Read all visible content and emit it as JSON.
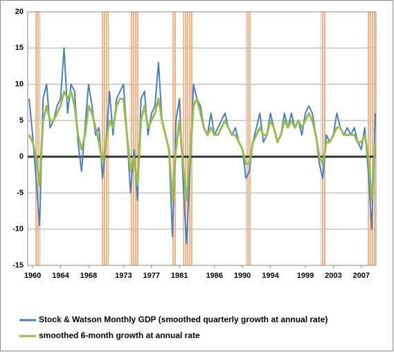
{
  "chart_data": {
    "type": "line",
    "x": [
      1959.5,
      1960,
      1960.5,
      1961,
      1961.5,
      1962,
      1962.5,
      1963,
      1963.5,
      1964,
      1964.5,
      1965,
      1965.5,
      1966,
      1966.5,
      1967,
      1967.5,
      1968,
      1968.5,
      1969,
      1969.5,
      1970,
      1970.5,
      1971,
      1971.5,
      1972,
      1972.5,
      1973,
      1973.5,
      1974,
      1974.5,
      1975,
      1975.5,
      1976,
      1976.5,
      1977,
      1977.5,
      1978,
      1978.5,
      1979,
      1979.5,
      1980,
      1980.5,
      1981,
      1981.5,
      1982,
      1982.5,
      1983,
      1983.5,
      1984,
      1984.5,
      1985,
      1985.5,
      1986,
      1986.5,
      1987,
      1987.5,
      1988,
      1988.5,
      1989,
      1989.5,
      1990,
      1990.5,
      1991,
      1991.5,
      1992,
      1992.5,
      1993,
      1993.5,
      1994,
      1994.5,
      1995,
      1995.5,
      1996,
      1996.5,
      1997,
      1997.5,
      1998,
      1998.5,
      1999,
      1999.5,
      2000,
      2000.5,
      2001,
      2001.5,
      2002,
      2002.5,
      2003,
      2003.5,
      2004,
      2004.5,
      2005,
      2005.5,
      2006,
      2006.5,
      2007,
      2007.5,
      2008,
      2008.5,
      2009
    ],
    "series": [
      {
        "name": "Stock & Watson Monthly GDP (smoothed quarterly growth at annual rate)",
        "color": "#4a7ebb",
        "values": [
          8,
          3,
          -3,
          -9.5,
          8,
          10,
          4,
          5,
          7,
          8,
          15,
          6,
          10,
          9,
          2,
          -2,
          4,
          10,
          7,
          3,
          4,
          -3,
          2,
          9,
          3,
          8,
          9,
          10,
          3,
          -5,
          1,
          -6,
          8,
          9,
          3,
          6,
          7,
          13,
          5,
          3,
          1,
          -11,
          5,
          8,
          -3,
          -12,
          -2,
          10,
          8,
          7,
          4,
          3,
          6,
          3,
          4,
          5,
          6,
          4,
          3,
          4,
          2,
          1,
          -3,
          -2,
          2,
          4,
          6,
          2,
          3,
          6,
          4,
          2,
          3,
          6,
          4,
          6,
          4,
          5,
          3,
          6,
          7,
          6,
          3,
          -1,
          -3,
          3,
          2,
          3,
          6,
          4,
          3,
          4,
          3,
          4,
          2,
          1,
          4,
          -2,
          -10,
          6
        ]
      },
      {
        "name": "smoothed 6-month growth at annual rate",
        "color": "#98b954",
        "values": [
          3,
          2,
          0,
          -4,
          5,
          7,
          5,
          5,
          6,
          7,
          9,
          8,
          9,
          7,
          3,
          1,
          3,
          7,
          6,
          4,
          2,
          -1,
          2,
          5,
          4,
          7,
          8,
          8,
          3,
          -2,
          0,
          -4,
          5,
          7,
          4,
          5,
          6,
          8,
          5,
          3,
          1,
          -6,
          1,
          5,
          -1,
          -6,
          0,
          7,
          8,
          6,
          4,
          3,
          4,
          3,
          3,
          4,
          5,
          4,
          3,
          3,
          2,
          1,
          -1,
          -1,
          2,
          3,
          4,
          3,
          3,
          5,
          4,
          2,
          3,
          5,
          4,
          5,
          4,
          5,
          4,
          5,
          6,
          5,
          3,
          0,
          -1,
          2,
          2,
          3,
          4,
          4,
          3,
          3,
          3,
          3,
          2,
          2,
          3,
          0,
          -6,
          2
        ]
      }
    ],
    "recessions": [
      [
        1960.3,
        1961.1
      ],
      [
        1969.9,
        1970.9
      ],
      [
        1973.9,
        1975.2
      ],
      [
        1980.0,
        1980.5
      ],
      [
        1981.5,
        1982.9
      ],
      [
        1990.5,
        1991.2
      ],
      [
        2001.2,
        2001.9
      ],
      [
        2007.9,
        2009.0
      ]
    ],
    "recession_color": "#f4b183",
    "xlim": [
      1959.3,
      2009.1
    ],
    "xticks": [
      1960,
      1964,
      1968,
      1973,
      1977,
      1981,
      1986,
      1990,
      1994,
      1999,
      2003,
      2007
    ],
    "ylim": [
      -15,
      20
    ],
    "yticks": [
      -15,
      -10,
      -5,
      0,
      5,
      10,
      15,
      20
    ],
    "grid": true
  }
}
